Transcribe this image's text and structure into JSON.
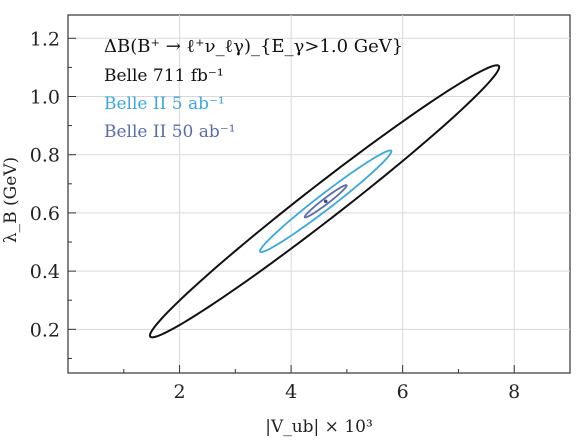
{
  "chart_data": {
    "type": "line",
    "title": "",
    "xlabel": "|V_ub| × 10³",
    "ylabel": "λ_B (GeV)",
    "xlim": [
      0,
      9
    ],
    "ylim": [
      0.05,
      1.28
    ],
    "xticks": [
      2,
      4,
      6,
      8
    ],
    "yticks": [
      0.2,
      0.4,
      0.6,
      0.8,
      1.0,
      1.2
    ],
    "xtick_labels": [
      "2",
      "4",
      "6",
      "8"
    ],
    "ytick_labels": [
      "0.2",
      "0.4",
      "0.6",
      "0.8",
      "1.0",
      "1.2"
    ],
    "grid": true,
    "legend_placement": "top-left",
    "legend_title": "ΔB(B⁺ → ℓ⁺ν_ℓγ)_{E_γ>1.0 GeV}",
    "series": [
      {
        "name": "Belle 711 fb⁻¹",
        "color": "#111111",
        "ellipse": {
          "center": [
            4.6,
            0.64
          ],
          "end1": [
            1.5,
            0.175
          ],
          "end2": [
            7.75,
            1.105
          ],
          "semi_minor": 0.3
        }
      },
      {
        "name": "Belle II 5 ab⁻¹",
        "color": "#3aa8de",
        "ellipse": {
          "center": [
            4.62,
            0.64
          ],
          "end1": [
            3.45,
            0.468
          ],
          "end2": [
            5.8,
            0.815
          ],
          "semi_minor": 0.13
        }
      },
      {
        "name": "Belle II 50 ab⁻¹",
        "color": "#5a6bb0",
        "ellipse": {
          "center": [
            4.62,
            0.64
          ],
          "end1": [
            4.25,
            0.585
          ],
          "end2": [
            5.0,
            0.695
          ],
          "semi_minor": 0.05
        }
      }
    ],
    "center_point": {
      "x": 4.62,
      "y": 0.64,
      "color": "#3a4a88"
    }
  }
}
